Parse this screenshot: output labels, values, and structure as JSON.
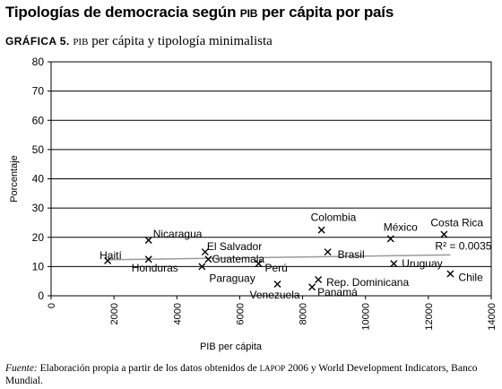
{
  "page": {
    "title_main": "Tipologías de democracia según ",
    "title_sc": "PIB",
    "title_rest": " per cápita por país",
    "subtitle_label": "GRÁFICA 5.",
    "subtitle_sc": "PIB",
    "subtitle_rest": " per cápita y tipología minimalista",
    "source_lead": "Fuente:",
    "source_text_1": " Elaboración propia a partir de los datos obtenidos de ",
    "source_sc": "LAPOP",
    "source_text_2": " 2006 y World Development Indicators, Banco Mundial."
  },
  "chart_data": {
    "type": "scatter",
    "title": "PIB per cápita y tipología minimalista",
    "xlabel": "PIB per cápita",
    "ylabel": "Porcentaje",
    "xlim": [
      0,
      14000
    ],
    "ylim": [
      0,
      80
    ],
    "xticks": [
      0,
      2000,
      4000,
      6000,
      8000,
      10000,
      12000,
      14000
    ],
    "yticks": [
      0,
      10,
      20,
      30,
      40,
      50,
      60,
      70,
      80
    ],
    "grid": "horizontal",
    "marker": "x",
    "points": [
      {
        "label": "Haití",
        "x": 1800,
        "y": 12
      },
      {
        "label": "Nicaragua",
        "x": 3100,
        "y": 19
      },
      {
        "label": "Honduras",
        "x": 3100,
        "y": 12.5
      },
      {
        "label": "Paraguay",
        "x": 4800,
        "y": 10
      },
      {
        "label": "El Salvador",
        "x": 4900,
        "y": 15
      },
      {
        "label": "Guatemala",
        "x": 5000,
        "y": 12.5
      },
      {
        "label": "Perú",
        "x": 6600,
        "y": 11
      },
      {
        "label": "Venezuela",
        "x": 7200,
        "y": 4
      },
      {
        "label": "Colombia",
        "x": 8600,
        "y": 22.5
      },
      {
        "label": "Brasil",
        "x": 8800,
        "y": 15
      },
      {
        "label": "Panamá",
        "x": 8300,
        "y": 3
      },
      {
        "label": "Rep. Dominicana",
        "x": 8500,
        "y": 5.5
      },
      {
        "label": "México",
        "x": 10800,
        "y": 19.5
      },
      {
        "label": "Uruguay",
        "x": 10900,
        "y": 11
      },
      {
        "label": "Costa Rica",
        "x": 12500,
        "y": 21
      },
      {
        "label": "Chile",
        "x": 12700,
        "y": 7.5
      }
    ],
    "trendline": {
      "x": [
        1800,
        12700
      ],
      "y": [
        12.3,
        14.0
      ],
      "r2_label": "R² = 0.0035"
    }
  }
}
